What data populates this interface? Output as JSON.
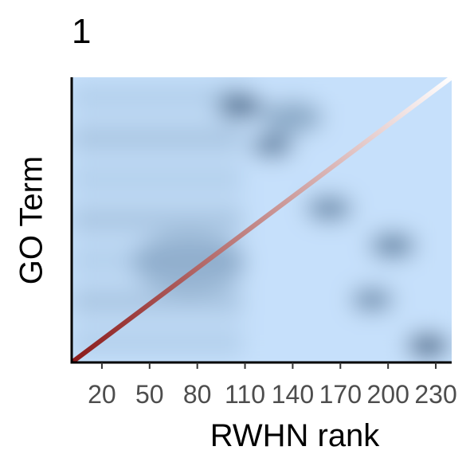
{
  "chart_data": {
    "type": "heatmap",
    "panel_label": "1",
    "xlabel": "RWHN rank",
    "ylabel": "GO Term",
    "x_ticks": [
      "20",
      "50",
      "80",
      "110",
      "140",
      "170",
      "200",
      "230"
    ],
    "x_tick_values": [
      20,
      50,
      80,
      110,
      140,
      170,
      200,
      230
    ],
    "xlim": [
      1,
      240
    ],
    "y_ticks": [],
    "diagonal": {
      "from": [
        1,
        0
      ],
      "to": [
        240,
        1
      ],
      "color_start": "#8b1a1a",
      "color_end": "#ffffff"
    },
    "hotspots": [
      {
        "x": 107,
        "y": 0.9,
        "intensity": 0.75,
        "spread": 12
      },
      {
        "x": 127,
        "y": 0.76,
        "intensity": 0.65,
        "spread": 11
      },
      {
        "x": 163,
        "y": 0.54,
        "intensity": 0.55,
        "spread": 12
      },
      {
        "x": 203,
        "y": 0.41,
        "intensity": 0.6,
        "spread": 12
      },
      {
        "x": 190,
        "y": 0.22,
        "intensity": 0.55,
        "spread": 11
      },
      {
        "x": 225,
        "y": 0.06,
        "intensity": 0.85,
        "spread": 11
      },
      {
        "x": 140,
        "y": 0.86,
        "intensity": 0.35,
        "spread": 16
      },
      {
        "x": 75,
        "y": 0.35,
        "intensity": 0.25,
        "spread": 30
      }
    ],
    "colors": {
      "low": "#c6e0fb",
      "high": "#20446a",
      "axis": "#000000",
      "tick_text": "#4d4d4d"
    }
  }
}
